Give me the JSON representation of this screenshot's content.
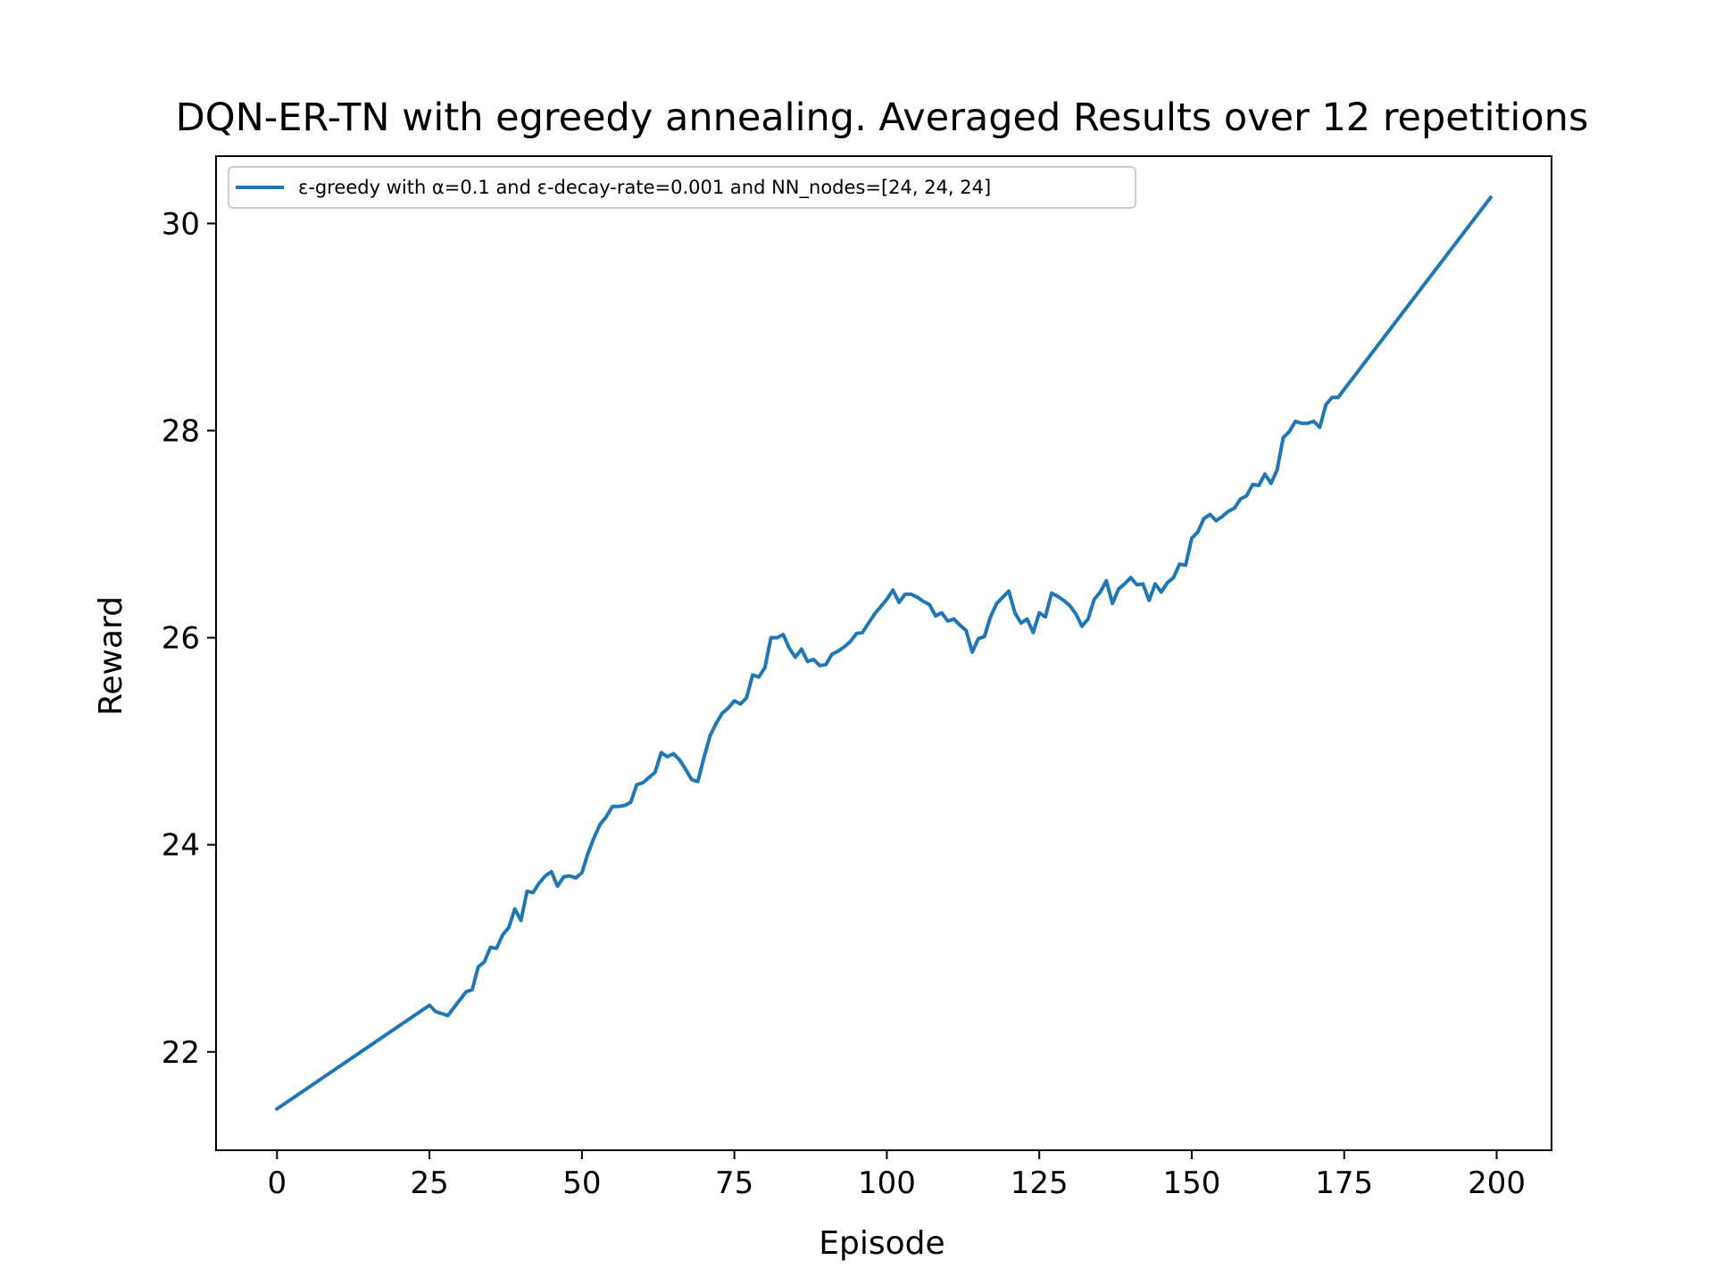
{
  "chart_data": {
    "type": "line",
    "title": "DQN-ER-TN with egreedy annealing. Averaged Results over 12 repetitions",
    "xlabel": "Episode",
    "ylabel": "Reward",
    "xlim": [
      -10,
      209
    ],
    "ylim": [
      21.05,
      30.65
    ],
    "xticks": [
      0,
      25,
      50,
      75,
      100,
      125,
      150,
      175,
      200
    ],
    "yticks": [
      22,
      24,
      26,
      28,
      30
    ],
    "grid": false,
    "legend_position": "top-left",
    "series": [
      {
        "name": "ε-greedy with α=0.1 and ε-decay-rate=0.001 and NN_nodes=[24, 24, 24]",
        "color": "#1f77b4",
        "x": [
          0,
          25,
          26,
          28,
          31,
          32,
          33,
          34,
          35,
          36,
          37,
          38,
          39,
          40,
          41,
          42,
          43,
          44,
          45,
          46,
          47,
          48,
          49,
          50,
          51,
          52,
          53,
          54,
          55,
          56,
          57,
          58,
          59,
          60,
          61,
          62,
          63,
          64,
          65,
          66,
          67,
          68,
          69,
          70,
          71,
          72,
          73,
          74,
          75,
          76,
          77,
          78,
          79,
          80,
          81,
          82,
          83,
          84,
          85,
          86,
          87,
          88,
          89,
          90,
          91,
          92,
          93,
          94,
          95,
          96,
          97,
          98,
          99,
          100,
          101,
          102,
          103,
          104,
          105,
          106,
          107,
          108,
          109,
          110,
          111,
          112,
          113,
          114,
          115,
          116,
          117,
          118,
          119,
          120,
          121,
          122,
          123,
          124,
          125,
          126,
          127,
          128,
          129,
          130,
          131,
          132,
          133,
          134,
          135,
          136,
          137,
          138,
          139,
          140,
          141,
          142,
          143,
          144,
          145,
          146,
          147,
          148,
          149,
          150,
          151,
          152,
          153,
          154,
          155,
          156,
          157,
          158,
          159,
          160,
          161,
          162,
          163,
          164,
          165,
          166,
          167,
          168,
          169,
          170,
          171,
          172,
          173,
          174,
          199
        ],
        "y": [
          21.45,
          22.45,
          22.39,
          22.35,
          22.58,
          22.6,
          22.82,
          22.87,
          23.01,
          23.0,
          23.13,
          23.2,
          23.38,
          23.27,
          23.55,
          23.54,
          23.63,
          23.7,
          23.74,
          23.6,
          23.69,
          23.7,
          23.68,
          23.73,
          23.92,
          24.07,
          24.2,
          24.27,
          24.37,
          24.37,
          24.38,
          24.41,
          24.58,
          24.6,
          24.65,
          24.7,
          24.89,
          24.85,
          24.88,
          24.82,
          24.73,
          24.63,
          24.61,
          24.84,
          25.05,
          25.17,
          25.27,
          25.32,
          25.39,
          25.36,
          25.42,
          25.64,
          25.62,
          25.71,
          26.0,
          26.0,
          26.03,
          25.9,
          25.81,
          25.89,
          25.77,
          25.79,
          25.73,
          25.74,
          25.84,
          25.87,
          25.91,
          25.96,
          26.04,
          26.05,
          26.14,
          26.23,
          26.3,
          26.37,
          26.46,
          26.34,
          26.42,
          26.42,
          26.39,
          26.35,
          26.32,
          26.21,
          26.24,
          26.16,
          26.18,
          26.12,
          26.07,
          25.86,
          25.99,
          26.01,
          26.2,
          26.33,
          26.39,
          26.45,
          26.24,
          26.14,
          26.18,
          26.05,
          26.24,
          26.2,
          26.43,
          26.4,
          26.36,
          26.31,
          26.23,
          26.11,
          26.18,
          26.37,
          26.44,
          26.55,
          26.33,
          26.47,
          26.52,
          26.58,
          26.51,
          26.52,
          26.36,
          26.52,
          26.44,
          26.53,
          26.58,
          26.71,
          26.7,
          26.96,
          27.02,
          27.15,
          27.19,
          27.13,
          27.17,
          27.22,
          27.25,
          27.34,
          27.37,
          27.48,
          27.47,
          27.58,
          27.49,
          27.62,
          27.93,
          27.99,
          28.09,
          28.07,
          28.07,
          28.09,
          28.03,
          28.25,
          28.32,
          28.32,
          30.25
        ]
      }
    ]
  }
}
